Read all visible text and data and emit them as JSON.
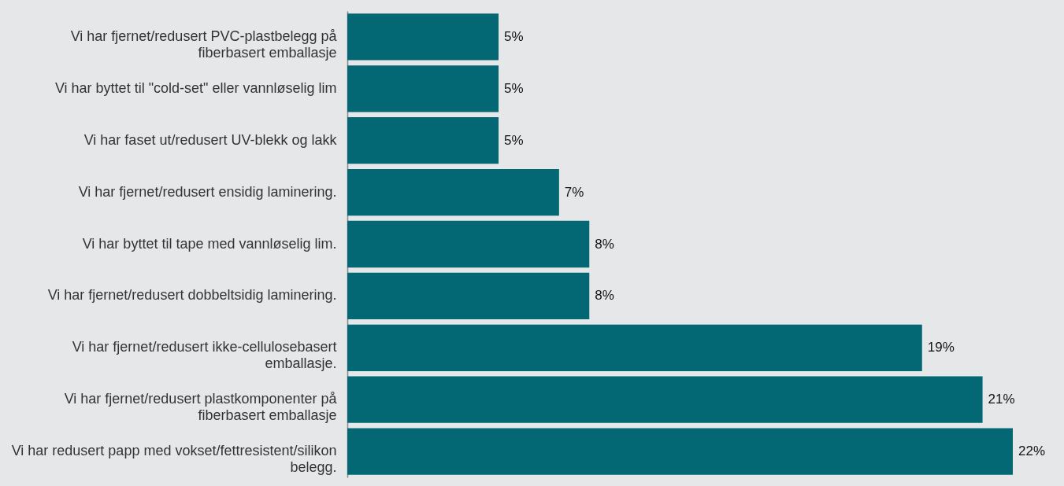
{
  "chart_data": {
    "type": "bar",
    "orientation": "horizontal",
    "color": "#036873",
    "categories": [
      "Vi har fjernet/redusert PVC-plastbelegg på fiberbasert emballasje",
      "Vi har byttet til \"cold-set\" eller vannløselig lim",
      "Vi har faset ut/redusert UV-blekk og lakk",
      "Vi har fjernet/redusert ensidig laminering.",
      "Vi har byttet til tape med vannløselig lim.",
      "Vi har fjernet/redusert dobbeltsidig laminering.",
      "Vi har fjernet/redusert ikke-cellulosebasert emballasje.",
      "Vi har fjernet/redusert plastkomponenter på fiberbasert emballasje",
      "Vi har redusert papp med vokset/fettresistent/silikon belegg."
    ],
    "values": [
      5,
      5,
      5,
      7,
      8,
      8,
      19,
      21,
      22
    ],
    "value_labels": [
      "5%",
      "5%",
      "5%",
      "7%",
      "8%",
      "8%",
      "19%",
      "21%",
      "22%"
    ]
  }
}
